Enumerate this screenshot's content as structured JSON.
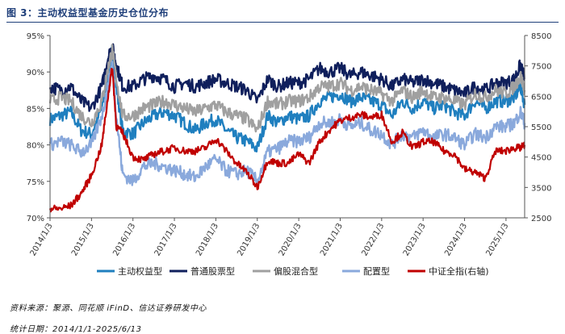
{
  "figure": {
    "title": "图 3：主动权益型基金历史仓位分布",
    "source_note": "资料来源：聚源、同花顺 iFinD、信达证券研发中心",
    "period_note": "统计日期：2014/1/1-2025/6/13"
  },
  "colors": {
    "title": "#1f3f7a",
    "series": [
      "#1f7fbf",
      "#0f1f5c",
      "#a0a0a0",
      "#8aa9dc",
      "#c00000"
    ]
  },
  "chart_data": {
    "type": "line",
    "title": "主动权益型基金历史仓位分布",
    "x_type": "date",
    "x_range": [
      2014.0,
      2025.45
    ],
    "x_ticks": [
      "2014/1/3",
      "2015/1/3",
      "2016/1/3",
      "2017/1/3",
      "2018/1/3",
      "2019/1/3",
      "2020/1/3",
      "2021/1/3",
      "2022/1/3",
      "2023/1/3",
      "2024/1/3",
      "2025/1/3"
    ],
    "y_left": {
      "label": "",
      "lim": [
        70,
        95
      ],
      "ticks": [
        "70%",
        "75%",
        "80%",
        "85%",
        "90%",
        "95%"
      ]
    },
    "y_right": {
      "label": "",
      "lim": [
        2500,
        8500
      ],
      "ticks": [
        "2500",
        "3500",
        "4500",
        "5500",
        "6500",
        "7500",
        "8500"
      ]
    },
    "grid": false,
    "legend": {
      "position": "bottom"
    },
    "series": [
      {
        "name": "主动权益型",
        "axis": "left",
        "color": "#1f7fbf",
        "x": [
          2014.0,
          2014.25,
          2014.5,
          2014.75,
          2015.0,
          2015.25,
          2015.4,
          2015.5,
          2015.6,
          2015.75,
          2016.0,
          2016.25,
          2016.5,
          2016.75,
          2017.0,
          2017.25,
          2017.5,
          2017.75,
          2018.0,
          2018.25,
          2018.5,
          2018.75,
          2019.0,
          2019.25,
          2019.5,
          2019.75,
          2020.0,
          2020.25,
          2020.5,
          2020.75,
          2021.0,
          2021.25,
          2021.5,
          2021.75,
          2022.0,
          2022.25,
          2022.5,
          2022.75,
          2023.0,
          2023.25,
          2023.5,
          2023.75,
          2024.0,
          2024.25,
          2024.5,
          2024.75,
          2025.0,
          2025.2,
          2025.35,
          2025.45
        ],
        "y": [
          83.5,
          84.0,
          84.5,
          82.0,
          81.5,
          85.0,
          90.0,
          93.0,
          88.0,
          82.0,
          81.5,
          83.0,
          84.0,
          84.5,
          84.0,
          83.0,
          82.0,
          83.0,
          83.5,
          82.0,
          81.0,
          80.5,
          79.5,
          84.0,
          83.0,
          84.0,
          83.5,
          84.0,
          86.0,
          86.5,
          87.0,
          86.0,
          86.5,
          86.0,
          85.5,
          84.0,
          86.0,
          85.0,
          86.0,
          85.0,
          85.5,
          84.5,
          84.0,
          86.0,
          85.0,
          86.0,
          86.0,
          86.5,
          88.0,
          85.5
        ]
      },
      {
        "name": "普通股票型",
        "axis": "left",
        "color": "#0f1f5c",
        "x": [
          2014.0,
          2014.25,
          2014.5,
          2014.75,
          2015.0,
          2015.25,
          2015.4,
          2015.5,
          2015.6,
          2015.75,
          2016.0,
          2016.25,
          2016.5,
          2016.75,
          2017.0,
          2017.25,
          2017.5,
          2017.75,
          2018.0,
          2018.25,
          2018.5,
          2018.75,
          2019.0,
          2019.25,
          2019.5,
          2019.75,
          2020.0,
          2020.25,
          2020.5,
          2020.75,
          2021.0,
          2021.25,
          2021.5,
          2021.75,
          2022.0,
          2022.25,
          2022.5,
          2022.75,
          2023.0,
          2023.25,
          2023.5,
          2023.75,
          2024.0,
          2024.25,
          2024.5,
          2024.75,
          2025.0,
          2025.2,
          2025.35,
          2025.45
        ],
        "y": [
          88.0,
          87.5,
          88.0,
          86.0,
          85.0,
          88.0,
          92.0,
          93.5,
          91.0,
          88.0,
          88.0,
          89.0,
          89.5,
          89.0,
          88.0,
          88.5,
          88.0,
          88.5,
          89.0,
          88.5,
          88.0,
          87.5,
          86.0,
          89.0,
          88.0,
          88.5,
          88.5,
          89.0,
          90.5,
          90.0,
          90.5,
          89.5,
          90.0,
          89.5,
          89.0,
          88.0,
          89.0,
          88.5,
          89.0,
          88.5,
          88.0,
          87.5,
          87.0,
          88.0,
          87.5,
          88.5,
          88.5,
          89.0,
          91.0,
          89.0
        ]
      },
      {
        "name": "偏股混合型",
        "axis": "left",
        "color": "#a0a0a0",
        "x": [
          2014.0,
          2014.25,
          2014.5,
          2014.75,
          2015.0,
          2015.25,
          2015.4,
          2015.5,
          2015.6,
          2015.75,
          2016.0,
          2016.25,
          2016.5,
          2016.75,
          2017.0,
          2017.25,
          2017.5,
          2017.75,
          2018.0,
          2018.25,
          2018.5,
          2018.75,
          2019.0,
          2019.25,
          2019.5,
          2019.75,
          2020.0,
          2020.25,
          2020.5,
          2020.75,
          2021.0,
          2021.25,
          2021.5,
          2021.75,
          2022.0,
          2022.25,
          2022.5,
          2022.75,
          2023.0,
          2023.25,
          2023.5,
          2023.75,
          2024.0,
          2024.25,
          2024.5,
          2024.75,
          2025.0,
          2025.2,
          2025.35,
          2025.45
        ],
        "y": [
          86.0,
          86.5,
          86.0,
          84.0,
          83.0,
          86.0,
          90.5,
          93.0,
          89.0,
          84.0,
          84.0,
          85.0,
          85.5,
          86.0,
          85.5,
          85.0,
          84.5,
          85.0,
          85.5,
          84.5,
          84.0,
          83.5,
          82.0,
          86.0,
          85.5,
          86.0,
          86.0,
          86.5,
          88.0,
          88.0,
          88.5,
          87.5,
          88.0,
          87.5,
          87.0,
          86.0,
          87.5,
          86.5,
          87.5,
          86.5,
          86.5,
          86.0,
          85.5,
          87.0,
          86.5,
          87.5,
          87.0,
          88.0,
          89.5,
          87.5
        ]
      },
      {
        "name": "配置型",
        "axis": "left",
        "color": "#8aa9dc",
        "x": [
          2014.0,
          2014.25,
          2014.5,
          2014.75,
          2015.0,
          2015.25,
          2015.4,
          2015.5,
          2015.6,
          2015.75,
          2016.0,
          2016.25,
          2016.5,
          2016.75,
          2017.0,
          2017.25,
          2017.5,
          2017.75,
          2018.0,
          2018.25,
          2018.5,
          2018.75,
          2019.0,
          2019.25,
          2019.5,
          2019.75,
          2020.0,
          2020.25,
          2020.5,
          2020.75,
          2021.0,
          2021.25,
          2021.5,
          2021.75,
          2022.0,
          2022.25,
          2022.5,
          2022.75,
          2023.0,
          2023.25,
          2023.5,
          2023.75,
          2024.0,
          2024.25,
          2024.5,
          2024.75,
          2025.0,
          2025.2,
          2025.35,
          2025.45
        ],
        "y": [
          80.0,
          80.5,
          80.0,
          79.0,
          80.0,
          84.0,
          88.0,
          91.0,
          84.0,
          76.0,
          75.0,
          77.0,
          77.5,
          77.0,
          76.5,
          76.0,
          75.5,
          77.0,
          78.0,
          76.5,
          76.0,
          76.5,
          75.0,
          79.0,
          79.5,
          80.5,
          80.5,
          81.0,
          83.0,
          83.0,
          83.5,
          82.5,
          83.0,
          82.0,
          81.5,
          80.0,
          81.5,
          81.0,
          82.0,
          81.0,
          81.5,
          81.0,
          80.0,
          81.5,
          81.0,
          82.5,
          82.5,
          83.0,
          84.5,
          83.0
        ]
      },
      {
        "name": "中证全指(右轴)",
        "axis": "right",
        "color": "#c00000",
        "x": [
          2014.0,
          2014.25,
          2014.5,
          2014.75,
          2015.0,
          2015.25,
          2015.4,
          2015.5,
          2015.6,
          2015.75,
          2016.0,
          2016.25,
          2016.5,
          2016.75,
          2017.0,
          2017.25,
          2017.5,
          2017.75,
          2018.0,
          2018.25,
          2018.5,
          2018.75,
          2019.0,
          2019.25,
          2019.5,
          2019.75,
          2020.0,
          2020.25,
          2020.5,
          2020.75,
          2021.0,
          2021.25,
          2021.5,
          2021.75,
          2022.0,
          2022.25,
          2022.5,
          2022.75,
          2023.0,
          2023.25,
          2023.5,
          2023.75,
          2024.0,
          2024.25,
          2024.5,
          2024.75,
          2025.0,
          2025.2,
          2025.35,
          2025.45
        ],
        "y": [
          2800,
          2800,
          2900,
          3300,
          3900,
          4900,
          6500,
          7500,
          5500,
          5300,
          4500,
          4400,
          4600,
          4700,
          4800,
          4700,
          4700,
          4800,
          5100,
          4700,
          4300,
          4000,
          3500,
          4400,
          4300,
          4300,
          4600,
          4300,
          5000,
          5400,
          5700,
          5800,
          5900,
          5800,
          5900,
          5000,
          5300,
          4800,
          5000,
          5000,
          4700,
          4600,
          4100,
          4000,
          3800,
          4700,
          4700,
          4800,
          4800,
          4900
        ]
      }
    ]
  }
}
